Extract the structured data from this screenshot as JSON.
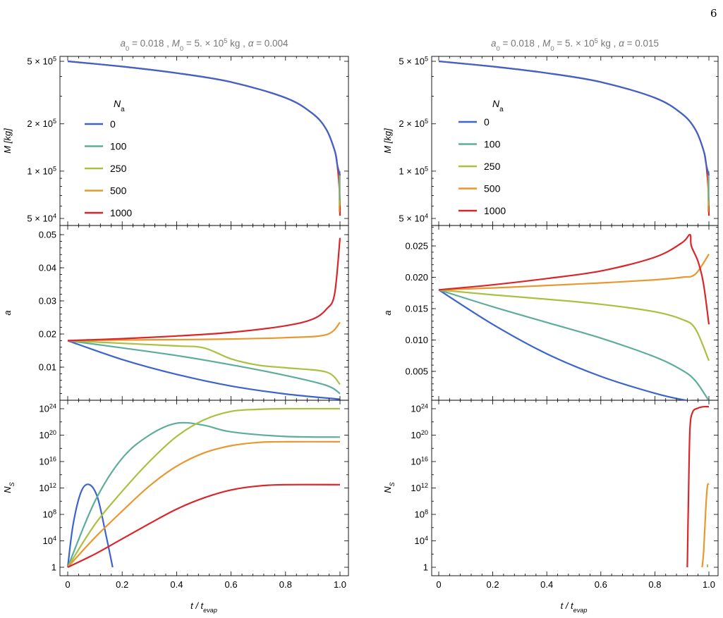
{
  "page_number": "6",
  "colors": {
    "Na_0": "#3d64c8",
    "Na_100": "#5ead9c",
    "Na_250": "#a9c040",
    "Na_500": "#e9972f",
    "Na_1000": "#d9262a"
  },
  "chart_data": [
    {
      "panel": "left-top",
      "type": "line",
      "title": "a0 = 0.018 , M0 = 5. × 10^5 kg , α = 0.004",
      "xlabel": "t / t_evap",
      "ylabel": "M [kg]",
      "ylim": [
        45000,
        560000
      ],
      "xlim": [
        0,
        1
      ],
      "yscale": "log",
      "legend": {
        "title": "Na",
        "placement": "left",
        "entries": [
          "0",
          "100",
          "250",
          "500",
          "1000"
        ]
      },
      "series": [
        {
          "name": "0",
          "x": [
            0,
            0.2,
            0.4,
            0.6,
            0.8,
            0.9,
            0.95,
            0.98,
            0.99,
            1.0
          ],
          "y": [
            500000,
            463000,
            421000,
            369000,
            293000,
            232000,
            184000,
            136000,
            110000,
            94000
          ]
        },
        {
          "name": "1000",
          "x": [
            0,
            0.2,
            0.4,
            0.6,
            0.8,
            0.9,
            0.95,
            0.98,
            0.99,
            0.998,
            1.0
          ],
          "y": [
            500000,
            463000,
            421000,
            369000,
            293000,
            232000,
            184000,
            136000,
            110000,
            75000,
            52000
          ]
        }
      ]
    },
    {
      "panel": "left-middle",
      "type": "line",
      "ylabel": "a",
      "ylim": [
        0.0015,
        0.052
      ],
      "xlim": [
        0,
        1
      ],
      "series": [
        {
          "name": "0",
          "x": [
            0,
            0.2,
            0.4,
            0.6,
            0.8,
            1.0
          ],
          "y": [
            0.018,
            0.0123,
            0.0078,
            0.0043,
            0.0019,
            0.0003
          ]
        },
        {
          "name": "100",
          "x": [
            0,
            0.2,
            0.4,
            0.6,
            0.8,
            0.95,
            1.0
          ],
          "y": [
            0.018,
            0.0158,
            0.0135,
            0.0107,
            0.0075,
            0.0045,
            0.002
          ]
        },
        {
          "name": "250",
          "x": [
            0,
            0.2,
            0.4,
            0.5,
            0.6,
            0.7,
            0.8,
            0.95,
            1.0
          ],
          "y": [
            0.018,
            0.0172,
            0.0164,
            0.0158,
            0.0125,
            0.0106,
            0.0098,
            0.0085,
            0.0048
          ]
        },
        {
          "name": "500",
          "x": [
            0,
            0.2,
            0.4,
            0.6,
            0.8,
            0.95,
            1.0
          ],
          "y": [
            0.018,
            0.0182,
            0.0183,
            0.0185,
            0.0189,
            0.0198,
            0.0235
          ]
        },
        {
          "name": "1000",
          "x": [
            0,
            0.2,
            0.4,
            0.6,
            0.8,
            0.9,
            0.95,
            0.98,
            1.0
          ],
          "y": [
            0.018,
            0.0186,
            0.0194,
            0.0205,
            0.0225,
            0.0245,
            0.0275,
            0.032,
            0.049
          ]
        }
      ]
    },
    {
      "panel": "left-bottom",
      "type": "line",
      "xlabel": "t / t_evap",
      "ylabel": "N_S",
      "yscale": "log",
      "ylim": [
        1,
        1e+24
      ],
      "xlim": [
        0,
        1
      ],
      "series": [
        {
          "name": "0",
          "x": [
            0,
            0.02,
            0.05,
            0.08,
            0.11,
            0.14,
            0.165
          ],
          "y_log10": [
            0,
            6.5,
            11.5,
            12.5,
            10.5,
            5,
            0
          ]
        },
        {
          "name": "100",
          "x": [
            0,
            0.1,
            0.2,
            0.3,
            0.4,
            0.5,
            0.6,
            0.8,
            1.0
          ],
          "y_log10": [
            0,
            10,
            16.5,
            20,
            21.8,
            21.5,
            20.5,
            19.8,
            19.7
          ]
        },
        {
          "name": "250",
          "x": [
            0,
            0.1,
            0.2,
            0.3,
            0.4,
            0.5,
            0.6,
            0.7,
            0.8,
            1.0
          ],
          "y_log10": [
            0,
            6.5,
            11.5,
            16,
            19.8,
            22.3,
            23.6,
            23.9,
            24,
            24
          ]
        },
        {
          "name": "500",
          "x": [
            0,
            0.1,
            0.2,
            0.3,
            0.4,
            0.5,
            0.6,
            0.7,
            0.8,
            1.0
          ],
          "y_log10": [
            0,
            4.5,
            8.5,
            12.3,
            15.3,
            17.3,
            18.4,
            18.9,
            19,
            19
          ]
        },
        {
          "name": "1000",
          "x": [
            0,
            0.1,
            0.2,
            0.3,
            0.4,
            0.5,
            0.6,
            0.7,
            0.8,
            1.0
          ],
          "y_log10": [
            0,
            2,
            4.3,
            6.6,
            8.8,
            10.5,
            11.7,
            12.3,
            12.5,
            12.5
          ]
        }
      ]
    },
    {
      "panel": "right-top",
      "type": "line",
      "title": "a0 = 0.018 , M0 = 5. × 10^5 kg , α = 0.015",
      "xlabel": "t / t_evap",
      "ylabel": "M [kg]",
      "ylim": [
        45000,
        560000
      ],
      "xlim": [
        0,
        1
      ],
      "yscale": "log",
      "legend": {
        "title": "Na",
        "placement": "left",
        "entries": [
          "0",
          "100",
          "250",
          "500",
          "1000"
        ]
      },
      "series": [
        {
          "name": "0",
          "x": [
            0,
            0.2,
            0.4,
            0.6,
            0.8,
            0.9,
            0.95,
            0.98,
            0.99,
            1.0
          ],
          "y": [
            500000,
            463000,
            421000,
            369000,
            293000,
            232000,
            184000,
            136000,
            110000,
            94000
          ]
        },
        {
          "name": "1000",
          "x": [
            0,
            0.2,
            0.4,
            0.6,
            0.8,
            0.9,
            0.95,
            0.98,
            0.99,
            0.998,
            1.0
          ],
          "y": [
            500000,
            463000,
            421000,
            369000,
            293000,
            232000,
            184000,
            136000,
            110000,
            75000,
            52000
          ]
        }
      ]
    },
    {
      "panel": "right-middle",
      "type": "line",
      "ylabel": "a",
      "ylim": [
        0.0002,
        0.0285
      ],
      "xlim": [
        0,
        1
      ],
      "series": [
        {
          "name": "0",
          "x": [
            0,
            0.2,
            0.4,
            0.6,
            0.8,
            0.9,
            0.95
          ],
          "y": [
            0.018,
            0.0125,
            0.0078,
            0.0042,
            0.0015,
            0.0005,
            0.0002
          ]
        },
        {
          "name": "100",
          "x": [
            0,
            0.2,
            0.4,
            0.6,
            0.8,
            0.9,
            0.95,
            1.0
          ],
          "y": [
            0.018,
            0.0153,
            0.0128,
            0.0103,
            0.0073,
            0.0052,
            0.0035,
            0.0003
          ]
        },
        {
          "name": "250",
          "x": [
            0,
            0.2,
            0.4,
            0.6,
            0.8,
            0.9,
            0.95,
            1.0
          ],
          "y": [
            0.018,
            0.0172,
            0.0165,
            0.0157,
            0.0145,
            0.0133,
            0.0118,
            0.0067
          ]
        },
        {
          "name": "500",
          "x": [
            0,
            0.2,
            0.4,
            0.6,
            0.8,
            0.9,
            0.95,
            1.0
          ],
          "y": [
            0.018,
            0.0183,
            0.0187,
            0.0191,
            0.0196,
            0.02,
            0.0205,
            0.0237
          ]
        },
        {
          "name": "1000",
          "x": [
            0,
            0.2,
            0.4,
            0.6,
            0.8,
            0.9,
            0.93,
            0.935,
            0.96,
            0.98,
            1.0
          ],
          "y": [
            0.018,
            0.0188,
            0.0198,
            0.021,
            0.0232,
            0.0255,
            0.0268,
            0.025,
            0.0225,
            0.019,
            0.0125
          ]
        }
      ]
    },
    {
      "panel": "right-bottom",
      "type": "line",
      "xlabel": "t / t_evap",
      "ylabel": "N_S",
      "yscale": "log",
      "ylim": [
        1,
        1e+24
      ],
      "xlim": [
        0,
        1
      ],
      "series": [
        {
          "name": "500",
          "x": [
            0.975,
            0.98,
            0.985,
            0.99,
            0.995,
            1.0
          ],
          "y_log10": [
            0,
            2,
            6,
            10,
            12.4,
            12.6
          ]
        },
        {
          "name": "1000",
          "x": [
            0.92,
            0.925,
            0.93,
            0.94,
            0.96,
            0.98,
            1.0
          ],
          "y_log10": [
            0,
            12,
            21,
            23.5,
            24.1,
            24.3,
            24.3
          ]
        },
        {
          "name": "250",
          "x": [
            0.995
          ],
          "y_log10": [
            0
          ]
        }
      ]
    }
  ],
  "ticks": {
    "x": [
      "0",
      "0.2",
      "0.4",
      "0.6",
      "0.8",
      "1.0"
    ],
    "M": [
      "5 × 10",
      "2 × 10",
      "1 × 10",
      "5 × 10"
    ],
    "M_exp": [
      "5",
      "5",
      "5",
      "4"
    ],
    "a_left": [
      "0.05",
      "0.04",
      "0.03",
      "0.02",
      "0.01"
    ],
    "a_right": [
      "0.025",
      "0.020",
      "0.015",
      "0.010",
      "0.005"
    ],
    "NS": [
      "10",
      "10",
      "10",
      "10",
      "10",
      "10",
      "1"
    ],
    "NS_exp": [
      "24",
      "20",
      "16",
      "12",
      "8",
      "4",
      ""
    ]
  },
  "labels": {
    "title_left": {
      "a": "a",
      "a_sub": "0",
      "mid1": " = 0.018 , ",
      "M": "M",
      "M_sub": "0",
      "mid2": " = 5. × 10",
      "exp": "5",
      "mid3": " kg , ",
      "alpha": "α",
      "end": " = 0.004"
    },
    "title_right": {
      "a": "a",
      "a_sub": "0",
      "mid1": " = 0.018 , ",
      "M": "M",
      "M_sub": "0",
      "mid2": " = 5. × 10",
      "exp": "5",
      "mid3": " kg , ",
      "alpha": "α",
      "end": " = 0.015"
    },
    "ylabel_M": "M",
    "ylabel_M_unit": "[kg]",
    "ylabel_a": "a",
    "ylabel_NS": "N",
    "ylabel_NS_sub": "S",
    "xlabel_t": "t",
    "xlabel_slash": " / ",
    "xlabel_t2": "t",
    "xlabel_sub": "evap",
    "legend_title": "N",
    "legend_title_sub": "a",
    "legend_entries": [
      "0",
      "100",
      "250",
      "500",
      "1000"
    ]
  }
}
